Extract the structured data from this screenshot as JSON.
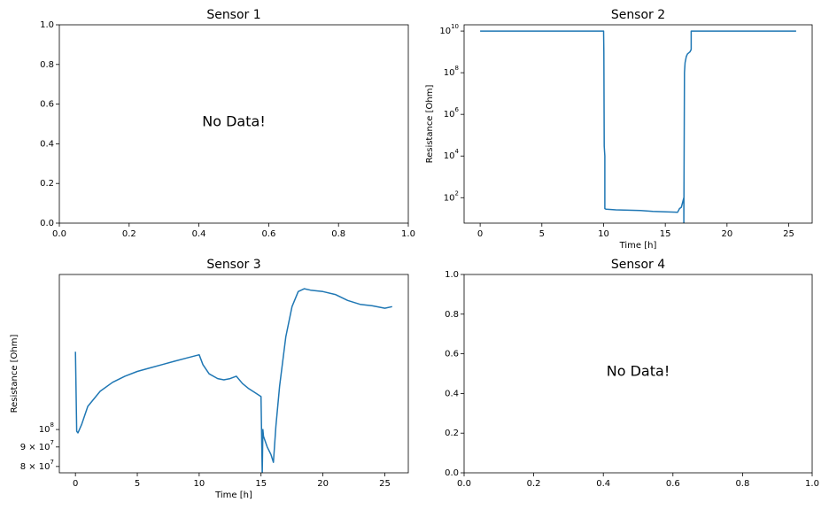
{
  "chart_data": [
    {
      "type": "line",
      "title": "Sensor 1",
      "annotation": "No Data!",
      "xlabel": "",
      "ylabel": "",
      "xlim": [
        0,
        1
      ],
      "ylim": [
        0,
        1
      ],
      "xticks": [
        "0.0",
        "0.2",
        "0.4",
        "0.6",
        "0.8",
        "1.0"
      ],
      "yticks": [
        "0.0",
        "0.2",
        "0.4",
        "0.6",
        "0.8",
        "1.0"
      ],
      "series": []
    },
    {
      "type": "line",
      "title": "Sensor 2",
      "xlabel": "Time [h]",
      "ylabel": "Resistance [Ohm]",
      "yscale": "log",
      "xlim": [
        -1.3,
        26.9
      ],
      "ylim": [
        6,
        20000000000
      ],
      "xticks": [
        "0",
        "5",
        "10",
        "15",
        "20",
        "25"
      ],
      "yticks": [
        "10^2",
        "10^4",
        "10^6",
        "10^8",
        "10^10"
      ],
      "series": [
        {
          "x": [
            0,
            10.0,
            10.02,
            10.05,
            10.1,
            10.1,
            10.2,
            11,
            12,
            13,
            14,
            15,
            16.0,
            16.15,
            16.3,
            16.5,
            16.5,
            16.55,
            16.6,
            16.7,
            16.8,
            17.0,
            17.1,
            17.1,
            17.2,
            25.6
          ],
          "y": [
            10000000000,
            10000000000,
            1000000000,
            30000,
            10000,
            30,
            28,
            26,
            25,
            24,
            22,
            21,
            20,
            30,
            35,
            100,
            5,
            100000000,
            300000000,
            600000000,
            800000000,
            1000000000,
            1300000000,
            10000000000,
            10000000000,
            10000000000
          ]
        }
      ]
    },
    {
      "type": "line",
      "title": "Sensor 3",
      "xlabel": "Time [h]",
      "ylabel": "Resistance [Ohm]",
      "yscale": "log",
      "xlim": [
        -1.3,
        26.9
      ],
      "ylim": [
        77000000,
        255000000
      ],
      "xticks": [
        "0",
        "5",
        "10",
        "15",
        "20",
        "25"
      ],
      "yticks": [
        "8 × 10^7",
        "9 × 10^7",
        "10^8"
      ],
      "series": [
        {
          "x": [
            0,
            0.1,
            0.2,
            0.5,
            1,
            2,
            3,
            4,
            5,
            6,
            7,
            8,
            9,
            10,
            10.3,
            10.8,
            11.5,
            12,
            12.5,
            13.0,
            13.5,
            14.0,
            14.5,
            15.0,
            15.1,
            15.15,
            15.2,
            15.5,
            15.8,
            16.0,
            16.2,
            16.5,
            17,
            17.5,
            18,
            18.5,
            19,
            20,
            21,
            22,
            23,
            24,
            25,
            25.6
          ],
          "y": [
            160000000,
            99000000,
            98000000,
            103000000,
            115000000,
            126000000,
            133000000,
            138000000,
            142000000,
            145000000,
            148000000,
            151000000,
            154000000,
            157000000,
            148000000,
            140000000,
            136000000,
            135000000,
            136000000,
            138000000,
            132000000,
            128000000,
            125000000,
            122000000,
            76000000,
            100000000,
            96000000,
            90000000,
            86000000,
            82000000,
            102000000,
            130000000,
            175000000,
            210000000,
            230000000,
            234000000,
            232000000,
            230000000,
            226000000,
            218000000,
            213000000,
            211000000,
            208000000,
            210000000
          ]
        }
      ]
    },
    {
      "type": "line",
      "title": "Sensor 4",
      "annotation": "No Data!",
      "xlabel": "",
      "ylabel": "",
      "xlim": [
        0,
        1
      ],
      "ylim": [
        0,
        1
      ],
      "xticks": [
        "0.0",
        "0.2",
        "0.4",
        "0.6",
        "0.8",
        "1.0"
      ],
      "yticks": [
        "0.0",
        "0.2",
        "0.4",
        "0.6",
        "0.8",
        "1.0"
      ],
      "series": []
    }
  ]
}
